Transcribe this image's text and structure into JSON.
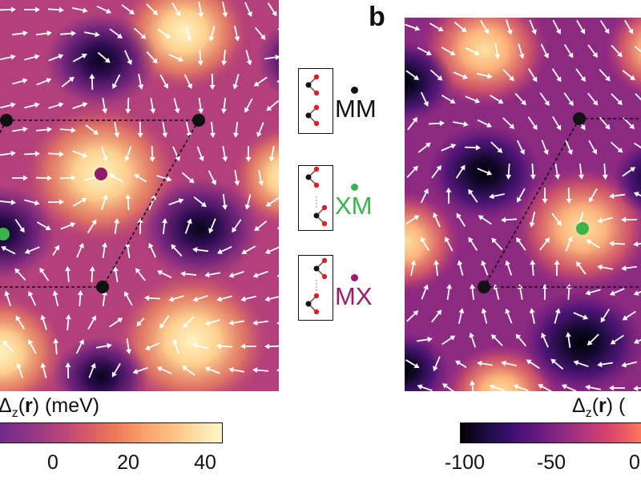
{
  "panel_b": {
    "letter": "b"
  },
  "colorbar_a": {
    "label_symbol": "Δ",
    "label_sub": "z",
    "label_arg": "r",
    "label_unit": "(meV)",
    "ticks": [
      "0",
      "20",
      "40"
    ],
    "gradient": [
      "#6d2a88",
      "#b3437a",
      "#ee7c58",
      "#fdc589",
      "#fdf6c8"
    ]
  },
  "colorbar_b": {
    "label_symbol": "Δ",
    "label_sub": "z",
    "label_arg": "r",
    "label_unit": "(",
    "ticks": [
      "-100",
      "-50",
      "0"
    ],
    "gradient": [
      "#000004",
      "#3b0f70",
      "#8c2981",
      "#de4968",
      "#fe9f6d"
    ]
  },
  "legend": [
    {
      "label": "MM",
      "dot_color": "#111111",
      "text_color": "#111111"
    },
    {
      "label": "XM",
      "dot_color": "#3cb44b",
      "text_color": "#3cb44b"
    },
    {
      "label": "MX",
      "dot_color": "#9b1b6e",
      "text_color": "#9b1b6e"
    }
  ],
  "markers": {
    "mm_color": "#111111",
    "xm_color": "#3cb44b",
    "mx_color": "#8e1c6b"
  }
}
